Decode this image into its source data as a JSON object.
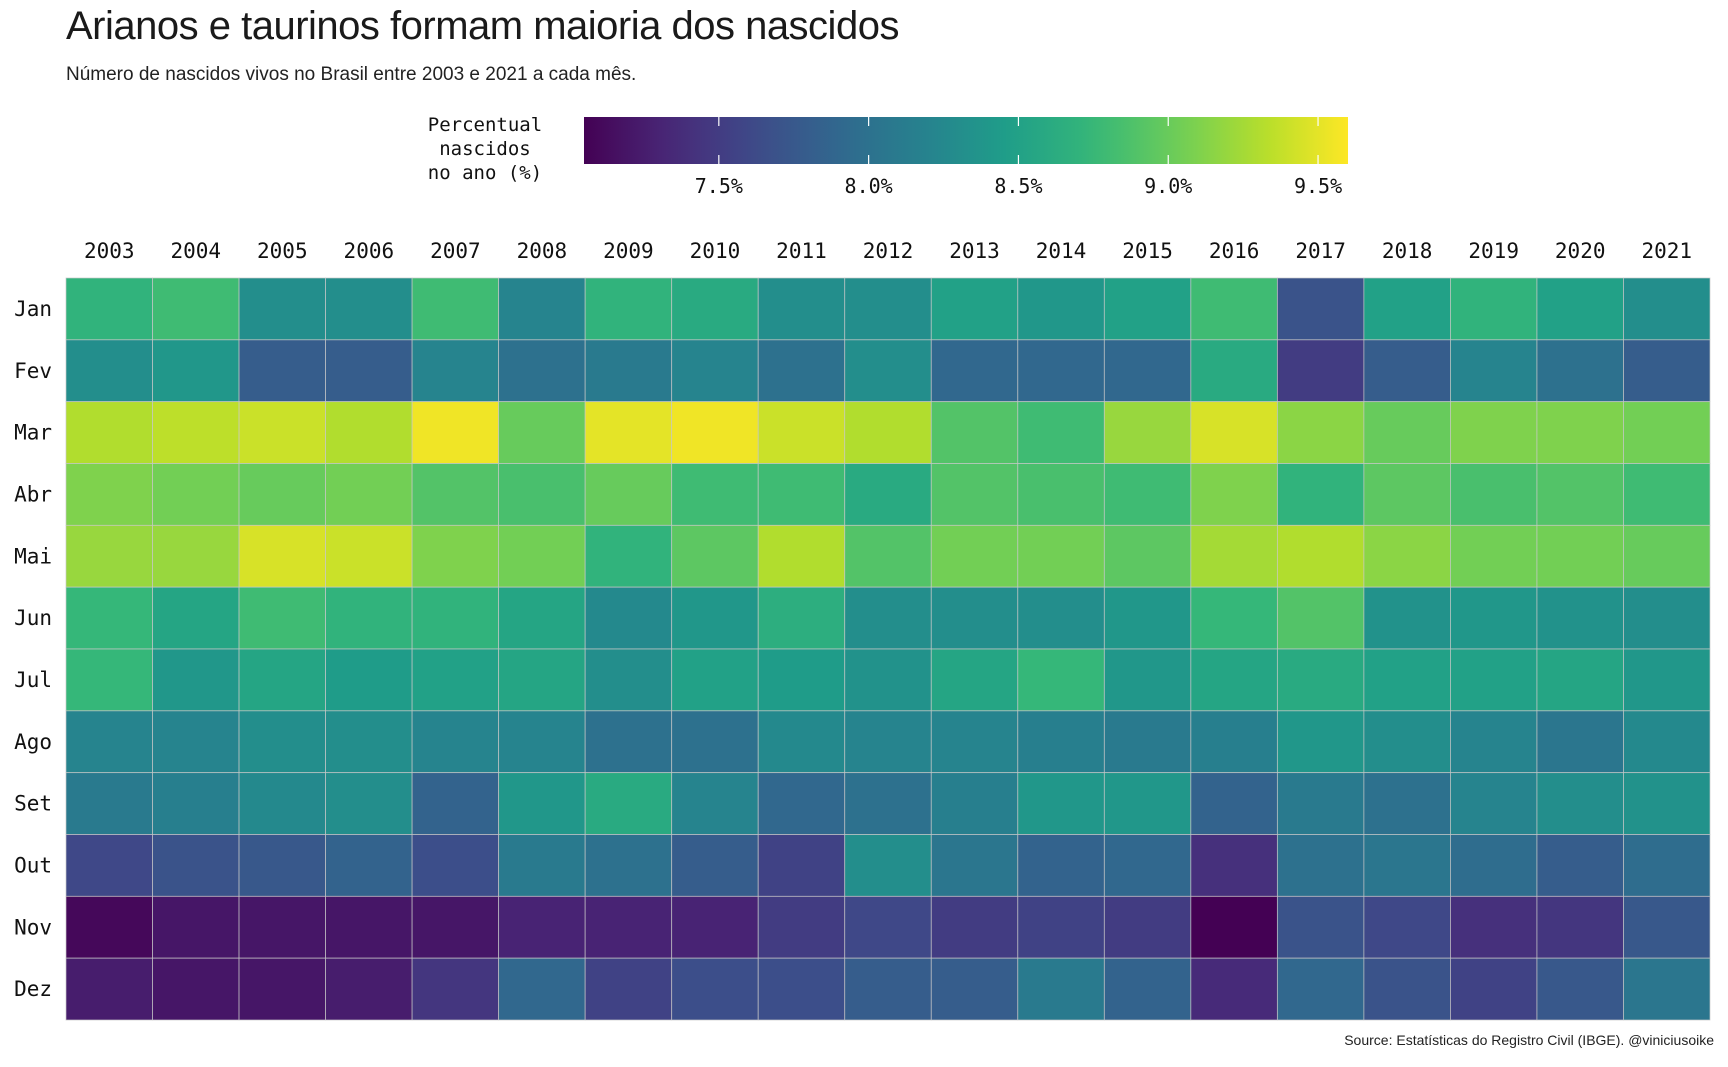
{
  "chart_data": {
    "type": "heatmap",
    "title": "Arianos e taurinos formam maioria dos nascidos",
    "subtitle": "Número de nascidos vivos no Brasil entre 2003 e 2021 a cada mês.",
    "caption": "Source: Estatísticas do Registro Civil (IBGE). @viniciusoike",
    "legend": {
      "title": "Percentual\nnascidos\nno ano (%)",
      "placement": "top",
      "range": [
        7.05,
        9.6
      ],
      "ticks": [
        7.5,
        8.0,
        8.5,
        9.0,
        9.5
      ],
      "tick_labels": [
        "7.5%",
        "8.0%",
        "8.5%",
        "9.0%",
        "9.5%"
      ],
      "palette": "viridis"
    },
    "x": [
      "2003",
      "2004",
      "2005",
      "2006",
      "2007",
      "2008",
      "2009",
      "2010",
      "2011",
      "2012",
      "2013",
      "2014",
      "2015",
      "2016",
      "2017",
      "2018",
      "2019",
      "2020",
      "2021"
    ],
    "y": [
      "Jan",
      "Fev",
      "Mar",
      "Abr",
      "Mai",
      "Jun",
      "Jul",
      "Ago",
      "Set",
      "Out",
      "Nov",
      "Dez"
    ],
    "values": [
      [
        8.7,
        8.8,
        8.3,
        8.3,
        8.8,
        8.2,
        8.7,
        8.6,
        8.3,
        8.3,
        8.5,
        8.4,
        8.5,
        8.8,
        7.7,
        8.5,
        8.7,
        8.5,
        8.3
      ],
      [
        8.3,
        8.4,
        7.8,
        7.8,
        8.2,
        8.0,
        8.1,
        8.2,
        8.0,
        8.3,
        7.9,
        7.9,
        7.9,
        8.6,
        7.5,
        7.8,
        8.2,
        8.0,
        7.8
      ],
      [
        9.3,
        9.35,
        9.4,
        9.3,
        9.55,
        9.0,
        9.5,
        9.55,
        9.4,
        9.3,
        8.9,
        8.8,
        9.2,
        9.45,
        9.15,
        9.0,
        9.1,
        9.1,
        9.05
      ],
      [
        9.1,
        9.05,
        9.0,
        9.05,
        8.9,
        8.85,
        9.0,
        8.8,
        8.8,
        8.6,
        8.9,
        8.85,
        8.8,
        9.1,
        8.7,
        8.95,
        8.85,
        8.9,
        8.8
      ],
      [
        9.2,
        9.2,
        9.45,
        9.4,
        9.1,
        9.05,
        8.7,
        8.95,
        9.3,
        8.9,
        9.05,
        9.05,
        8.95,
        9.25,
        9.3,
        9.15,
        9.05,
        9.05,
        9.0
      ],
      [
        8.75,
        8.55,
        8.8,
        8.7,
        8.7,
        8.55,
        8.25,
        8.4,
        8.65,
        8.3,
        8.3,
        8.3,
        8.4,
        8.75,
        8.9,
        8.35,
        8.4,
        8.35,
        8.3
      ],
      [
        8.75,
        8.4,
        8.55,
        8.45,
        8.5,
        8.55,
        8.3,
        8.5,
        8.45,
        8.35,
        8.55,
        8.75,
        8.4,
        8.55,
        8.6,
        8.5,
        8.5,
        8.55,
        8.4
      ],
      [
        8.2,
        8.2,
        8.3,
        8.3,
        8.2,
        8.2,
        8.0,
        8.0,
        8.25,
        8.2,
        8.2,
        8.15,
        8.1,
        8.15,
        8.4,
        8.3,
        8.2,
        8.05,
        8.25
      ],
      [
        8.1,
        8.15,
        8.25,
        8.3,
        7.85,
        8.4,
        8.6,
        8.2,
        7.9,
        8.0,
        8.15,
        8.4,
        8.4,
        7.85,
        8.1,
        8.0,
        8.2,
        8.3,
        8.35
      ],
      [
        7.6,
        7.7,
        7.75,
        7.85,
        7.65,
        8.1,
        8.0,
        7.8,
        7.55,
        8.3,
        8.05,
        7.85,
        7.9,
        7.4,
        8.0,
        8.05,
        7.95,
        7.8,
        7.95
      ],
      [
        7.1,
        7.2,
        7.2,
        7.2,
        7.2,
        7.3,
        7.3,
        7.3,
        7.5,
        7.6,
        7.5,
        7.55,
        7.5,
        7.05,
        7.7,
        7.6,
        7.4,
        7.45,
        7.75
      ],
      [
        7.25,
        7.2,
        7.2,
        7.25,
        7.45,
        7.9,
        7.55,
        7.65,
        7.65,
        7.8,
        7.8,
        8.1,
        7.85,
        7.35,
        7.9,
        7.7,
        7.55,
        7.75,
        8.05
      ]
    ]
  }
}
